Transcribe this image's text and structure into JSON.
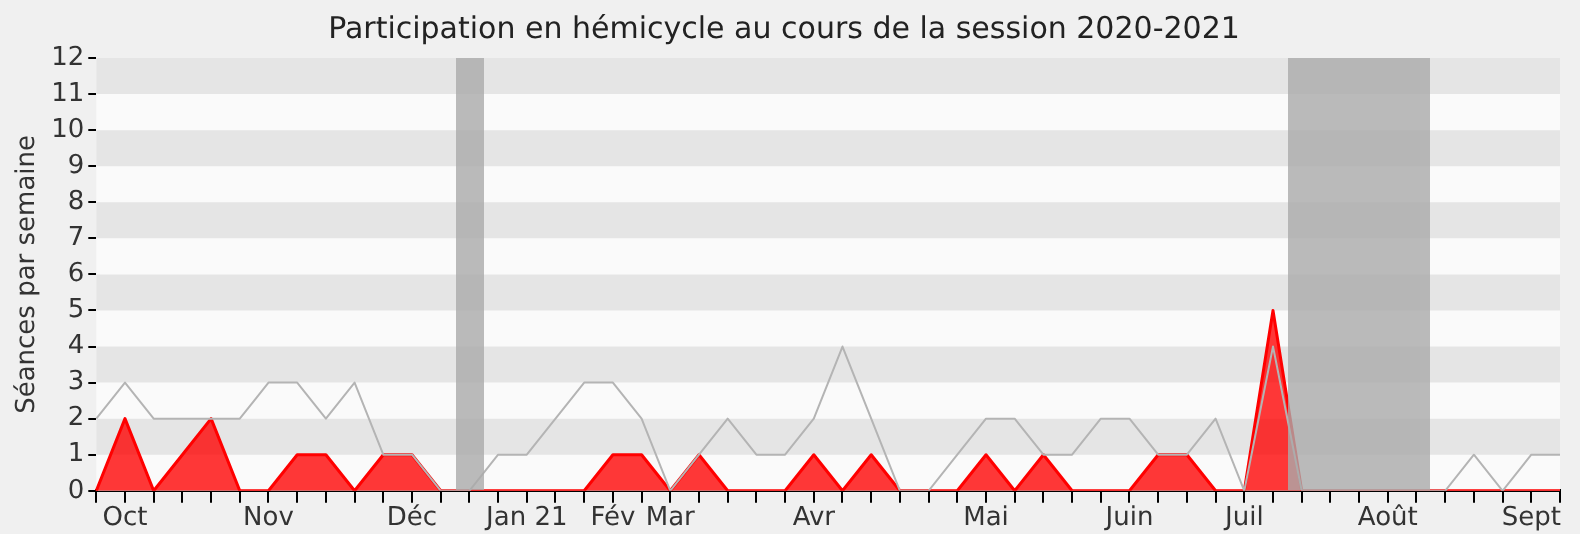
{
  "chart_data": {
    "type": "line",
    "title": "Participation en hémicycle au cours de la session 2020-2021",
    "ylabel": "Séances par semaine",
    "categories": [
      null,
      "Oct",
      null,
      null,
      null,
      null,
      "Nov",
      null,
      null,
      null,
      null,
      "Déc",
      null,
      null,
      null,
      "Jan 21",
      null,
      null,
      "Fév",
      null,
      "Mar",
      null,
      null,
      null,
      null,
      "Avr",
      null,
      null,
      null,
      null,
      null,
      "Mai",
      null,
      null,
      null,
      null,
      "Juin",
      null,
      null,
      null,
      "Juil",
      null,
      null,
      null,
      null,
      "Août",
      null,
      null,
      null,
      null,
      "Sept",
      null
    ],
    "series": [
      {
        "type": "area",
        "color": "#ff0000",
        "values": [
          0,
          2,
          0,
          1,
          2,
          0,
          0,
          1,
          1,
          0,
          1,
          1,
          0,
          0,
          0,
          0,
          0,
          0,
          1,
          1,
          0,
          1,
          0,
          0,
          0,
          1,
          0,
          1,
          0,
          0,
          0,
          1,
          0,
          1,
          0,
          0,
          0,
          1,
          1,
          0,
          0,
          5,
          0,
          0,
          0,
          0,
          0,
          0,
          0,
          0,
          0,
          0
        ]
      },
      {
        "type": "line",
        "color": "#b4b4b4",
        "values": [
          2,
          3,
          2,
          2,
          2,
          2,
          3,
          3,
          2,
          3,
          1,
          1,
          0,
          0,
          1,
          1,
          2,
          3,
          3,
          2,
          0,
          1,
          2,
          1,
          1,
          2,
          4,
          2,
          0,
          0,
          1,
          2,
          2,
          1,
          1,
          2,
          2,
          1,
          1,
          2,
          0,
          4,
          0,
          0,
          0,
          0,
          0,
          0,
          1,
          0,
          1,
          1
        ]
      }
    ],
    "ylim": [
      0,
      12
    ],
    "yticks": [
      0,
      1,
      2,
      3,
      4,
      5,
      6,
      7,
      8,
      9,
      10,
      11,
      12
    ],
    "legend": false,
    "marker": "none"
  }
}
